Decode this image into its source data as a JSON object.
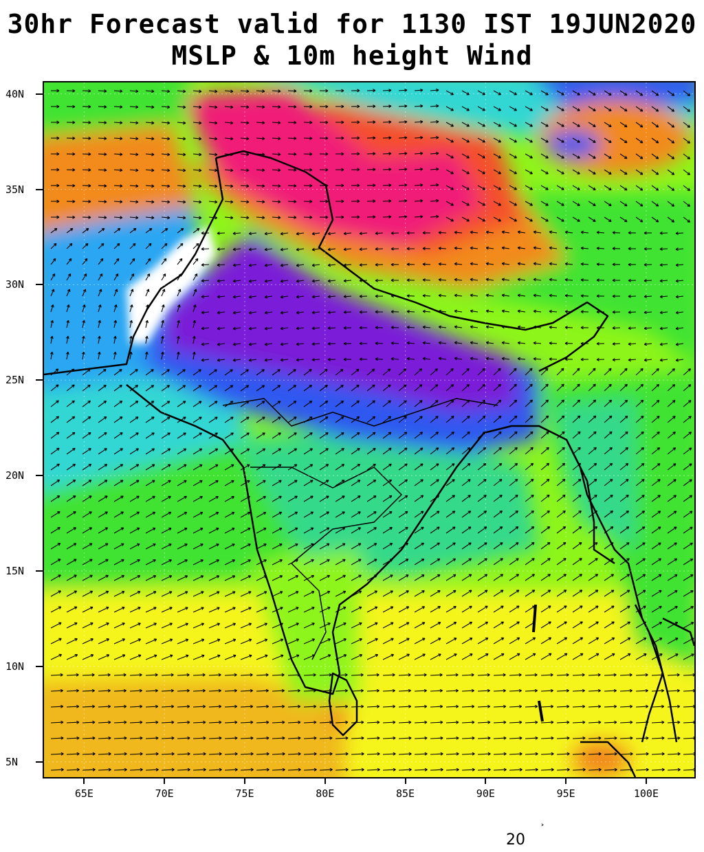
{
  "title_line1": "30hr Forecast valid for 1130 IST 19JUN2020",
  "title_line2": "MSLP & 10m height Wind",
  "map": {
    "lon_range": [
      62.5,
      103
    ],
    "lat_range": [
      4.2,
      40.6
    ],
    "lat_ticks": [
      "40N",
      "35N",
      "30N",
      "25N",
      "20N",
      "15N",
      "10N",
      "5N"
    ],
    "lat_values": [
      40,
      35,
      30,
      25,
      20,
      15,
      10,
      5
    ],
    "lon_ticks": [
      "65E",
      "70E",
      "75E",
      "80E",
      "85E",
      "90E",
      "95E",
      "100E"
    ],
    "lon_values": [
      65,
      70,
      75,
      80,
      85,
      90,
      95,
      100
    ],
    "palette": {
      "white": "#ffffff",
      "purple": "#7a1fd8",
      "blue": "#2f58f0",
      "sky": "#2aa6f2",
      "cyan": "#33d7d3",
      "teal_green": "#36d98a",
      "green": "#3fe332",
      "light_green": "#8ef51a",
      "yellow": "#f5f51a",
      "gold": "#f0b81e",
      "orange": "#f28a1c",
      "red_orange": "#f5502a",
      "pink": "#f01e78"
    },
    "wind_vector_reference": "20"
  }
}
